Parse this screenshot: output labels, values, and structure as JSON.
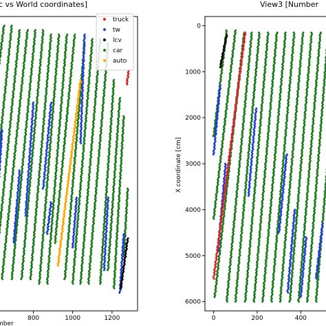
{
  "chart_data": [
    {
      "type": "scatter",
      "title": "c vs World coordinates]",
      "xlabel": "mber",
      "ylabel": "",
      "xlim": [
        595,
        1330
      ],
      "ylim": [
        6300,
        -200
      ],
      "xticks": [
        800,
        1000,
        1200
      ],
      "yticks": [],
      "legend": {
        "position": "top-right",
        "entries": [
          {
            "name": "truck",
            "color": "#d62728"
          },
          {
            "name": "tw",
            "color": "#1f3fd4"
          },
          {
            "name": "lcv",
            "color": "#000000"
          },
          {
            "name": "car",
            "color": "#1a7a1a"
          },
          {
            "name": "auto",
            "color": "#ffa500"
          }
        ]
      },
      "series": [
        {
          "name": "car",
          "color": "#1a7a1a",
          "segments": [
            [
              [
                610,
                1400
              ],
              [
                650,
                0
              ]
            ],
            [
              [
                610,
                3400
              ],
              [
                690,
                0
              ]
            ],
            [
              [
                612,
                5200
              ],
              [
                730,
                100
              ]
            ],
            [
              [
                640,
                5600
              ],
              [
                770,
                100
              ]
            ],
            [
              [
                690,
                5600
              ],
              [
                810,
                100
              ]
            ],
            [
              [
                740,
                5600
              ],
              [
                850,
                100
              ]
            ],
            [
              [
                785,
                5600
              ],
              [
                890,
                200
              ]
            ],
            [
              [
                830,
                5700
              ],
              [
                930,
                200
              ]
            ],
            [
              [
                870,
                5700
              ],
              [
                970,
                200
              ]
            ],
            [
              [
                910,
                4800
              ],
              [
                1010,
                200
              ]
            ],
            [
              [
                960,
                5600
              ],
              [
                1060,
                400
              ]
            ],
            [
              [
                1000,
                5700
              ],
              [
                1100,
                300
              ]
            ],
            [
              [
                1040,
                5700
              ],
              [
                1140,
                300
              ]
            ],
            [
              [
                1080,
                5700
              ],
              [
                1180,
                400
              ]
            ],
            [
              [
                1140,
                5700
              ],
              [
                1210,
                1200
              ]
            ],
            [
              [
                1180,
                5400
              ],
              [
                1240,
                1600
              ]
            ],
            [
              [
                1210,
                5800
              ],
              [
                1260,
                2000
              ]
            ],
            [
              [
                1260,
                5100
              ],
              [
                1280,
                3600
              ]
            ]
          ]
        },
        {
          "name": "tw",
          "color": "#1f3fd4",
          "segments": [
            [
              [
                612,
                4300
              ],
              [
                640,
                2300
              ]
            ],
            [
              [
                700,
                4800
              ],
              [
                730,
                3200
              ]
            ],
            [
              [
                760,
                4200
              ],
              [
                800,
                1700
              ]
            ],
            [
              [
                850,
                3600
              ],
              [
                890,
                1700
              ]
            ],
            [
              [
                870,
                4600
              ],
              [
                890,
                3900
              ]
            ],
            [
              [
                1000,
                4900
              ],
              [
                1020,
                3800
              ]
            ],
            [
              [
                1040,
                2600
              ],
              [
                1060,
                200
              ]
            ],
            [
              [
                1160,
                5400
              ],
              [
                1180,
                3800
              ]
            ],
            [
              [
                1240,
                5900
              ],
              [
                1260,
                4600
              ]
            ]
          ]
        },
        {
          "name": "lcv",
          "color": "#000000",
          "segments": [
            [
              [
                1245,
                5800
              ],
              [
                1280,
                4700
              ]
            ]
          ]
        },
        {
          "name": "auto",
          "color": "#ffa500",
          "segments": [
            [
              [
                925,
                5300
              ],
              [
                1040,
                1200
              ]
            ]
          ]
        },
        {
          "name": "truck",
          "color": "#d62728",
          "segments": [
            [
              [
                1275,
                1300
              ],
              [
                1285,
                1000
              ]
            ]
          ]
        }
      ]
    },
    {
      "type": "scatter",
      "title": "View3 [Number",
      "xlabel": "",
      "ylabel": "X coordinate [cm]",
      "xlim": [
        -40,
        560
      ],
      "ylim": [
        6200,
        -200
      ],
      "xticks": [
        0,
        200,
        400
      ],
      "yticks": [
        0,
        1000,
        2000,
        3000,
        4000,
        5000,
        6000
      ],
      "series": [
        {
          "name": "car",
          "color": "#1a7a1a",
          "segments": [
            [
              [
                0,
                2400
              ],
              [
                60,
                100
              ]
            ],
            [
              [
                0,
                4200
              ],
              [
                100,
                100
              ]
            ],
            [
              [
                5,
                5900
              ],
              [
                140,
                150
              ]
            ],
            [
              [
                60,
                6000
              ],
              [
                175,
                150
              ]
            ],
            [
              [
                100,
                6000
              ],
              [
                210,
                150
              ]
            ],
            [
              [
                145,
                6000
              ],
              [
                250,
                150
              ]
            ],
            [
              [
                185,
                6000
              ],
              [
                290,
                150
              ]
            ],
            [
              [
                225,
                6000
              ],
              [
                330,
                150
              ]
            ],
            [
              [
                265,
                6000
              ],
              [
                370,
                150
              ]
            ],
            [
              [
                305,
                6000
              ],
              [
                410,
                150
              ]
            ],
            [
              [
                350,
                6000
              ],
              [
                450,
                150
              ]
            ],
            [
              [
                390,
                6000
              ],
              [
                490,
                150
              ]
            ],
            [
              [
                430,
                6000
              ],
              [
                520,
                500
              ]
            ],
            [
              [
                470,
                6000
              ],
              [
                530,
                2600
              ]
            ]
          ]
        },
        {
          "name": "tw",
          "color": "#1f3fd4",
          "segments": [
            [
              [
                0,
                2800
              ],
              [
                30,
                1300
              ]
            ],
            [
              [
                20,
                4900
              ],
              [
                55,
                3000
              ]
            ],
            [
              [
                160,
                3700
              ],
              [
                195,
                1800
              ]
            ],
            [
              [
                300,
                4500
              ],
              [
                335,
                2800
              ]
            ],
            [
              [
                340,
                5800
              ],
              [
                372,
                4000
              ]
            ],
            [
              [
                400,
                5900
              ],
              [
                425,
                4600
              ]
            ],
            [
              [
                470,
                5500
              ],
              [
                500,
                4300
              ]
            ]
          ]
        },
        {
          "name": "lcv",
          "color": "#000000",
          "segments": [
            [
              [
                30,
                900
              ],
              [
                60,
                200
              ]
            ]
          ]
        },
        {
          "name": "truck",
          "color": "#d62728",
          "segments": [
            [
              [
                0,
                5500
              ],
              [
                145,
                150
              ]
            ]
          ]
        }
      ]
    }
  ]
}
